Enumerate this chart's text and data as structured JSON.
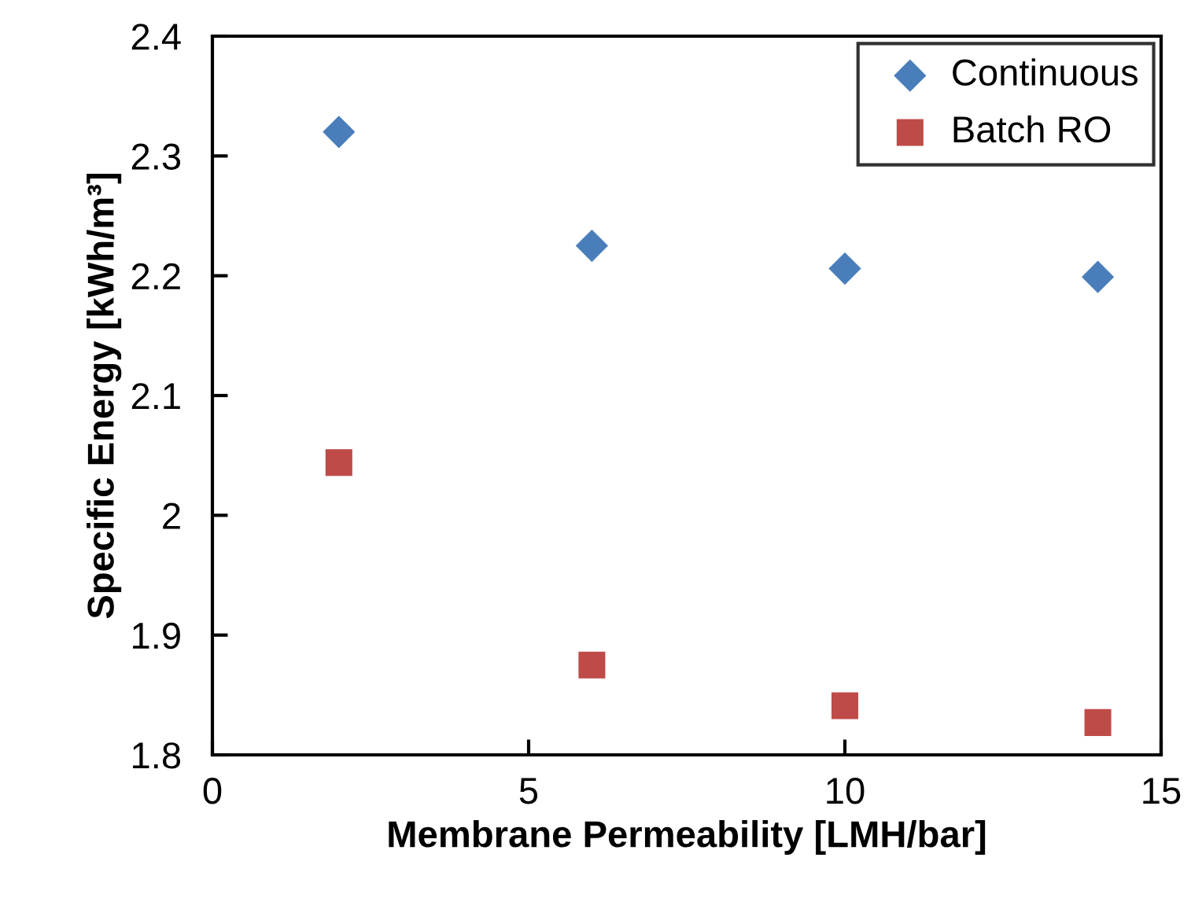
{
  "chart_data": {
    "type": "scatter",
    "xlabel": "Membrane Permeability [LMH/bar]",
    "ylabel": "Specific Energy [kWh/m³]",
    "x": [
      2,
      6,
      10,
      14
    ],
    "series": [
      {
        "name": "Continuous",
        "color": "#4a7ebb",
        "marker": "diamond",
        "values": [
          2.32,
          2.225,
          2.206,
          2.199
        ]
      },
      {
        "name": "Batch RO",
        "color": "#be4b48",
        "marker": "square",
        "values": [
          2.044,
          1.875,
          1.841,
          1.827
        ]
      }
    ],
    "xlim": [
      0,
      15
    ],
    "xticks": [
      0,
      5,
      10,
      15
    ],
    "ylim": [
      1.8,
      2.4
    ],
    "yticks": [
      1.8,
      1.9,
      2,
      2.1,
      2.2,
      2.3,
      2.4
    ],
    "grid": false,
    "legend": "top right"
  }
}
